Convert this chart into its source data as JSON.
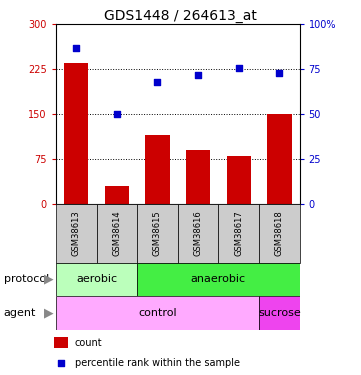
{
  "title": "GDS1448 / 264613_at",
  "samples": [
    "GSM38613",
    "GSM38614",
    "GSM38615",
    "GSM38616",
    "GSM38617",
    "GSM38618"
  ],
  "counts": [
    235,
    30,
    115,
    90,
    80,
    150
  ],
  "percentiles": [
    87,
    50,
    68,
    72,
    76,
    73
  ],
  "ylim_left": [
    0,
    300
  ],
  "ylim_right": [
    0,
    100
  ],
  "yticks_left": [
    0,
    75,
    150,
    225,
    300
  ],
  "yticks_right": [
    0,
    25,
    50,
    75,
    100
  ],
  "bar_color": "#cc0000",
  "scatter_color": "#0000cc",
  "protocol_labels": [
    [
      "aerobic",
      0,
      2
    ],
    [
      "anaerobic",
      2,
      6
    ]
  ],
  "protocol_colors": [
    "#bbffbb",
    "#44ee44"
  ],
  "agent_labels": [
    [
      "control",
      0,
      5
    ],
    [
      "sucrose",
      5,
      6
    ]
  ],
  "agent_colors": [
    "#ffaaff",
    "#ee44ee"
  ],
  "sample_bg_color": "#cccccc",
  "legend_count_color": "#cc0000",
  "legend_pct_color": "#0000cc",
  "title_fontsize": 10,
  "tick_fontsize": 7,
  "row_label_fontsize": 8,
  "sample_fontsize": 6,
  "legend_fontsize": 7,
  "dotted_lines": [
    75,
    150,
    225
  ]
}
